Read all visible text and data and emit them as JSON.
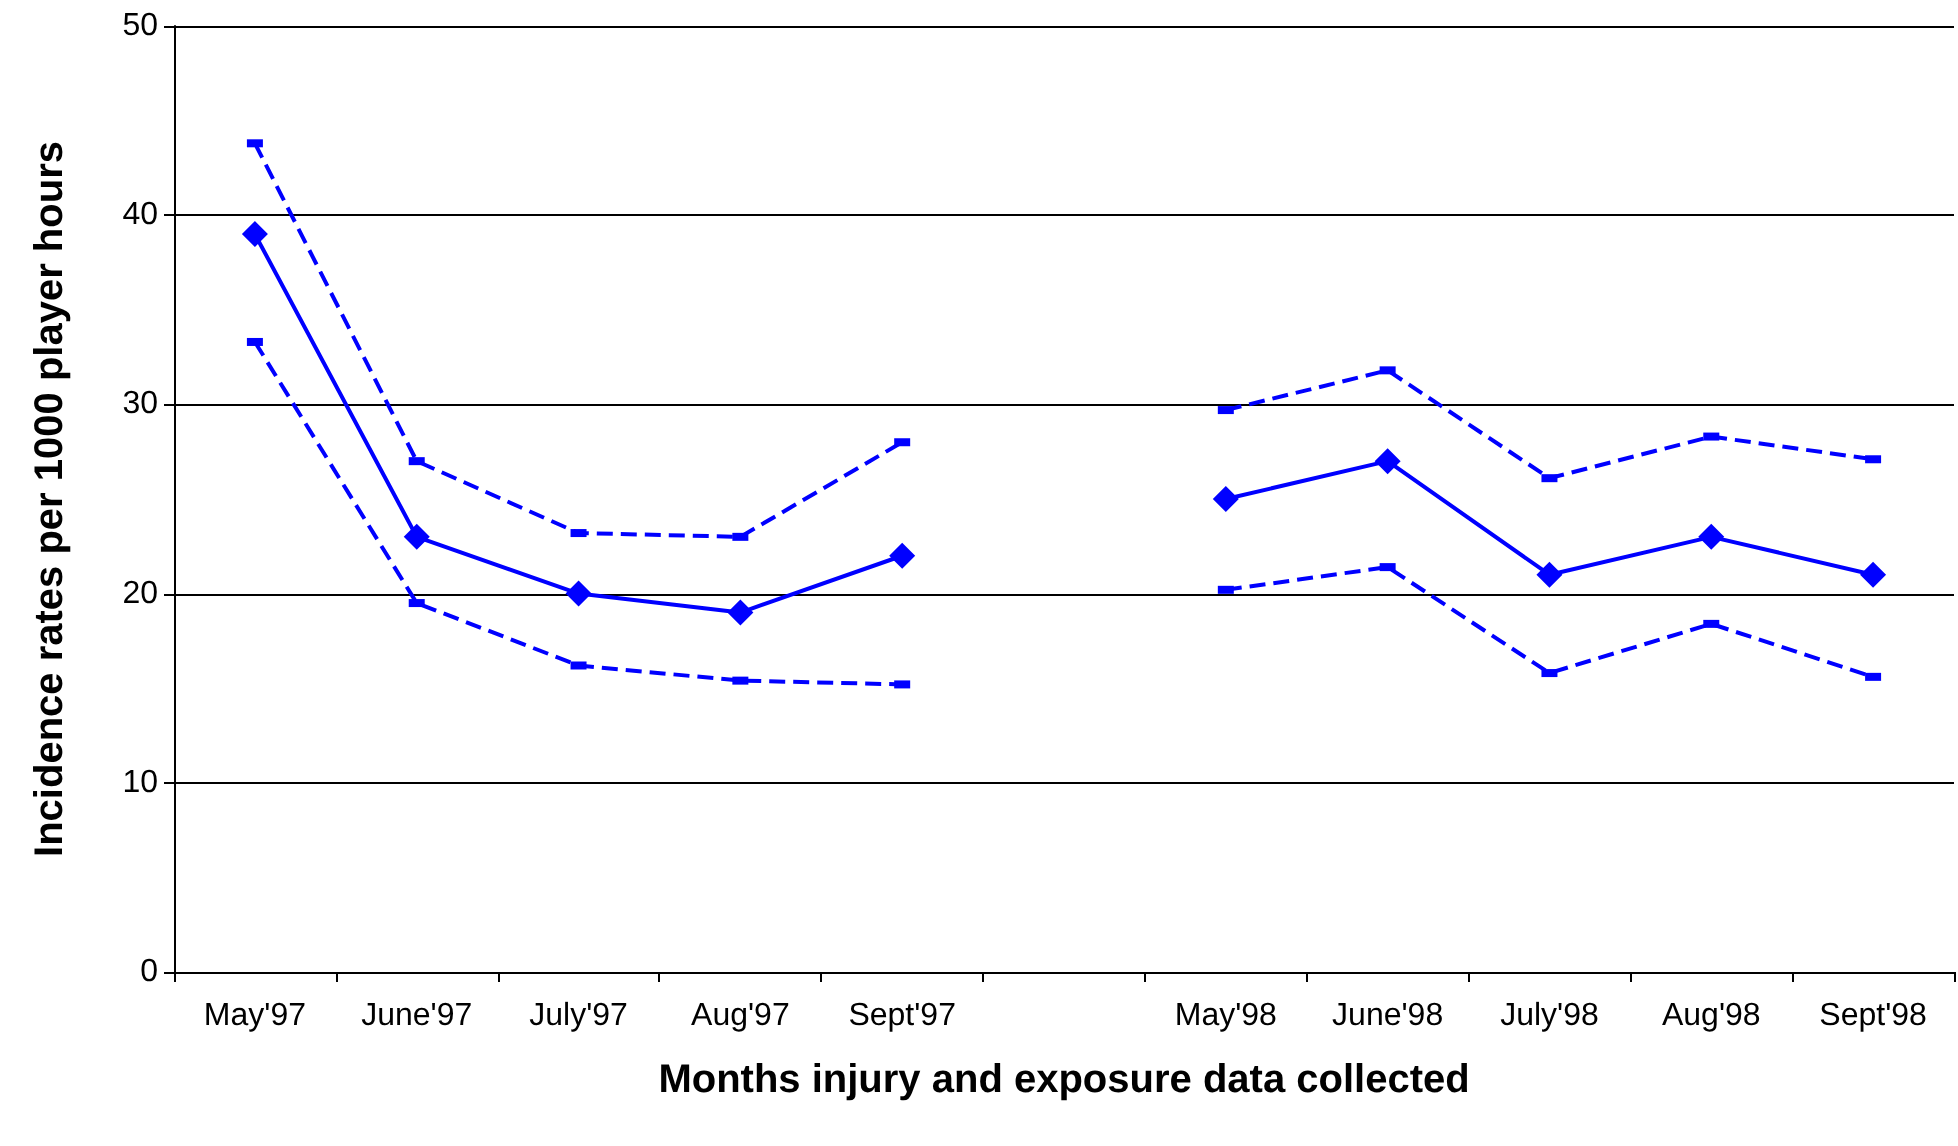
{
  "chart_data": {
    "type": "line",
    "xlabel": "Months injury and exposure data collected",
    "ylabel": "Incidence rates per 1000 player hours",
    "categories": [
      "May'97",
      "June'97",
      "July'97",
      "Aug'97",
      "Sept'97",
      null,
      "May'98",
      "June'98",
      "July'98",
      "Aug'98",
      "Sept'98"
    ],
    "series": [
      {
        "color": "#0000ff",
        "values": [
          39,
          23,
          20,
          19,
          22,
          null,
          25,
          27,
          21,
          23,
          21
        ]
      },
      {
        "color": "#0000ff",
        "marker": "square",
        "line_style": "dashed",
        "values": [
          43.8,
          27,
          23.2,
          23,
          28,
          null,
          29.7,
          31.8,
          26.1,
          28.3,
          27.1
        ]
      },
      {
        "color": "#0000ff",
        "marker": "square",
        "line_style": "dashed",
        "values": [
          33.3,
          19.5,
          16.2,
          15.4,
          15.2,
          null,
          20.2,
          21.4,
          15.8,
          18.4,
          15.6
        ]
      }
    ],
    "ylim": [
      0,
      50
    ],
    "yticks": [
      0,
      10,
      20,
      30,
      40,
      50
    ],
    "grid": "y",
    "marker": "diamond",
    "line_style": "solid"
  }
}
